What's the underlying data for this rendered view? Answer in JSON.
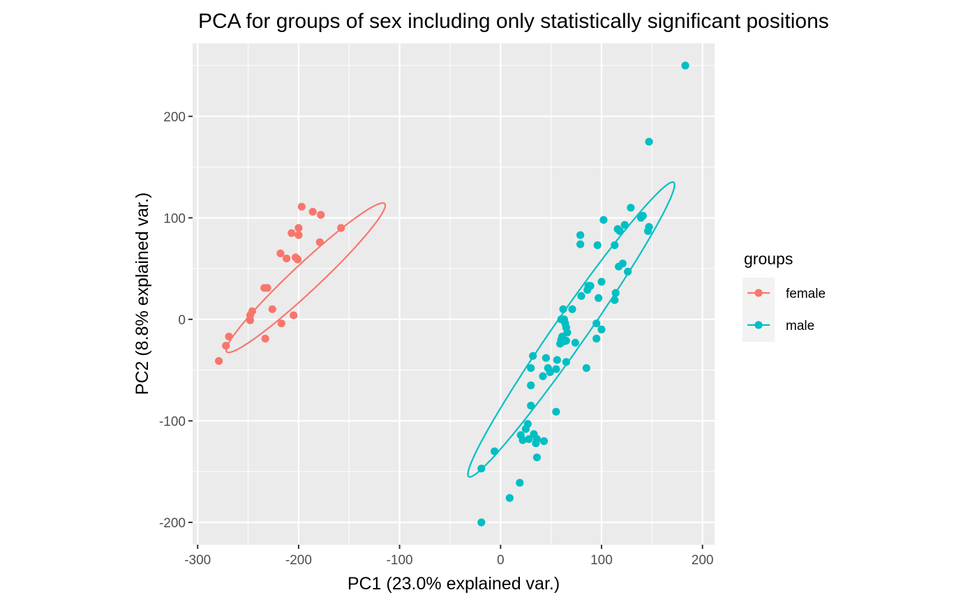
{
  "chart_data": {
    "type": "scatter",
    "title": "PCA for groups of sex including only statistically significant positions",
    "xlabel": "PC1 (23.0% explained var.)",
    "ylabel": "PC2 (8.8% explained var.)",
    "xlim": [
      -305,
      212
    ],
    "ylim": [
      -222,
      272
    ],
    "x_ticks": [
      -300,
      -200,
      -100,
      0,
      100,
      200
    ],
    "x_tick_labels": [
      "-300",
      "-200",
      "-100",
      "0",
      "100",
      "200"
    ],
    "y_ticks": [
      -200,
      -100,
      0,
      100,
      200
    ],
    "y_tick_labels": [
      "-200",
      "-100",
      "0",
      "100",
      "200"
    ],
    "grid": true,
    "legend": {
      "title": "groups",
      "placement": "right"
    },
    "series": [
      {
        "name": "female",
        "color": "#F8766D",
        "points": [
          [
            -197,
            111
          ],
          [
            -186,
            106
          ],
          [
            -178,
            103
          ],
          [
            -158,
            90
          ],
          [
            -200,
            90
          ],
          [
            -207,
            85
          ],
          [
            -200,
            83
          ],
          [
            -179,
            76
          ],
          [
            -218,
            65
          ],
          [
            -212,
            60
          ],
          [
            -203,
            61
          ],
          [
            -201,
            59
          ],
          [
            -234,
            31
          ],
          [
            -231,
            31
          ],
          [
            -246,
            8
          ],
          [
            -226,
            10
          ],
          [
            -248,
            4
          ],
          [
            -248,
            -1
          ],
          [
            -205,
            4
          ],
          [
            -217,
            -4
          ],
          [
            -233,
            -19
          ],
          [
            -269,
            -17
          ],
          [
            -272,
            -26
          ],
          [
            -279,
            -41
          ]
        ],
        "ellipse": {
          "center": [
            -193,
            41
          ],
          "semi_major": 107,
          "semi_minor": 13.5,
          "angle_deg": 43
        }
      },
      {
        "name": "male",
        "color": "#00BFC4",
        "points": [
          [
            183,
            250
          ],
          [
            147,
            175
          ],
          [
            129,
            110
          ],
          [
            141,
            102
          ],
          [
            139,
            100
          ],
          [
            102,
            98
          ],
          [
            123,
            93
          ],
          [
            116,
            89
          ],
          [
            118,
            87
          ],
          [
            147,
            91
          ],
          [
            146,
            87
          ],
          [
            79,
            83
          ],
          [
            79,
            74
          ],
          [
            96,
            73
          ],
          [
            113,
            73
          ],
          [
            121,
            55
          ],
          [
            117,
            52
          ],
          [
            126,
            47
          ],
          [
            87,
            33
          ],
          [
            89,
            33
          ],
          [
            100,
            37
          ],
          [
            86,
            29
          ],
          [
            114,
            26
          ],
          [
            80,
            23
          ],
          [
            97,
            21
          ],
          [
            113,
            19
          ],
          [
            62,
            10
          ],
          [
            71,
            10
          ],
          [
            60,
            0
          ],
          [
            63,
            0
          ],
          [
            64,
            -4
          ],
          [
            65,
            -8
          ],
          [
            95,
            -4
          ],
          [
            100,
            -10
          ],
          [
            66,
            -13
          ],
          [
            61,
            -17
          ],
          [
            60,
            -20
          ],
          [
            62,
            -22
          ],
          [
            65,
            -21
          ],
          [
            74,
            -23
          ],
          [
            59,
            -24
          ],
          [
            95,
            -19
          ],
          [
            45,
            -38
          ],
          [
            32,
            -36
          ],
          [
            56,
            -40
          ],
          [
            65,
            -42
          ],
          [
            47,
            -48
          ],
          [
            55,
            -49
          ],
          [
            30,
            -48
          ],
          [
            49,
            -52
          ],
          [
            85,
            -48
          ],
          [
            42,
            -56
          ],
          [
            30,
            -65
          ],
          [
            30,
            -85
          ],
          [
            55,
            -91
          ],
          [
            27,
            -103
          ],
          [
            25,
            -108
          ],
          [
            20,
            -114
          ],
          [
            33,
            -113
          ],
          [
            22,
            -119
          ],
          [
            28,
            -118
          ],
          [
            36,
            -118
          ],
          [
            35,
            -122
          ],
          [
            43,
            -120
          ],
          [
            -6,
            -130
          ],
          [
            36,
            -136
          ],
          [
            -19,
            -147
          ],
          [
            19,
            -161
          ],
          [
            9,
            -176
          ],
          [
            -19,
            -200
          ]
        ],
        "ellipse": {
          "center": [
            70,
            -10
          ],
          "semi_major": 177,
          "semi_minor": 16,
          "angle_deg": 55
        }
      }
    ]
  }
}
